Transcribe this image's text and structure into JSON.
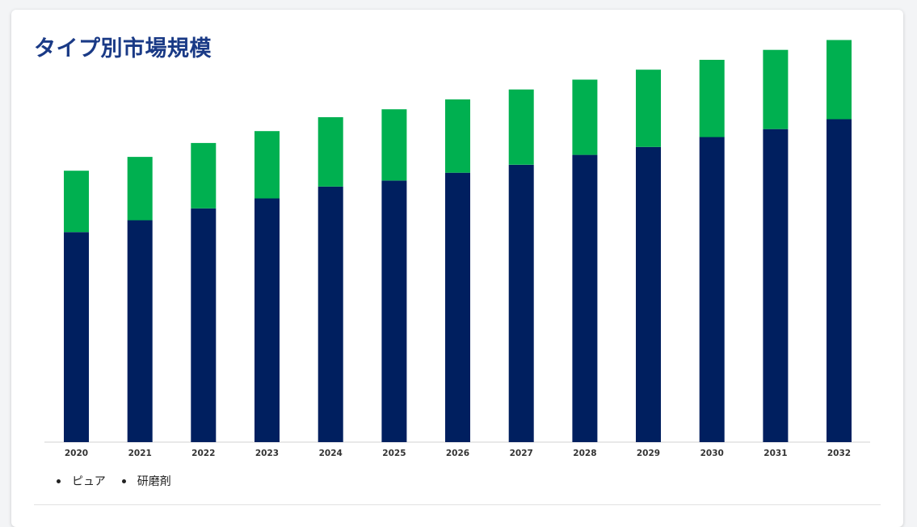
{
  "page": {
    "title": "タイプ別市場規模"
  },
  "chart_data": {
    "type": "bar",
    "stacked": true,
    "categories": [
      "2020",
      "2021",
      "2022",
      "2023",
      "2024",
      "2025",
      "2026",
      "2027",
      "2028",
      "2029",
      "2030",
      "2031",
      "2032"
    ],
    "series": [
      {
        "name": "ピュア",
        "color": "#001f5f",
        "values": [
          53.0,
          56.0,
          59.0,
          61.5,
          64.5,
          66.0,
          68.0,
          70.0,
          72.5,
          74.5,
          77.0,
          79.0,
          81.5
        ]
      },
      {
        "name": "研磨剤",
        "color": "#00b050",
        "values": [
          15.5,
          16.0,
          16.5,
          17.0,
          17.5,
          18.0,
          18.5,
          19.0,
          19.0,
          19.5,
          19.5,
          20.0,
          20.0
        ]
      }
    ],
    "ylim": [
      0,
      102
    ],
    "grid": false,
    "legend": "bottom-left"
  }
}
